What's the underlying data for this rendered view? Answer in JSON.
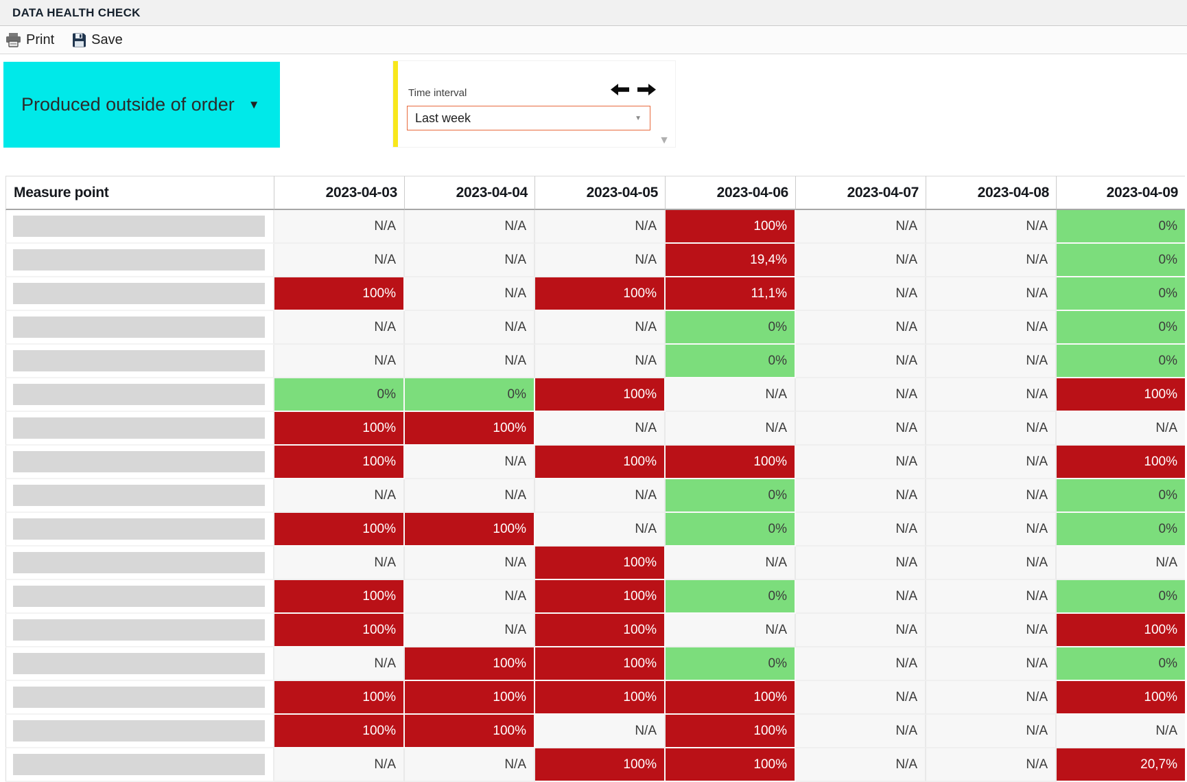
{
  "header": {
    "title": "DATA HEALTH CHECK"
  },
  "toolbar": {
    "print_label": "Print",
    "save_label": "Save"
  },
  "filters": {
    "measure_dropdown": {
      "label": "Produced outside of order",
      "caret": "▼",
      "bg_color": "#00E9E9"
    },
    "time_panel": {
      "label": "Time interval",
      "selected_value": "Last week",
      "select_caret": "▼",
      "grip_caret": "▼",
      "accent_border_color": "#E8693C",
      "stripe_color": "#F8E71C"
    }
  },
  "table": {
    "first_column_header": "Measure point",
    "date_columns": [
      "2023-04-03",
      "2023-04-04",
      "2023-04-05",
      "2023-04-06",
      "2023-04-07",
      "2023-04-08",
      "2023-04-09"
    ],
    "status_colors": {
      "red": "#BA1117",
      "green": "#7CDD7C",
      "na_bg": "#F7F7F7"
    },
    "rows": [
      {
        "cells": [
          [
            "N/A",
            "na"
          ],
          [
            "N/A",
            "na"
          ],
          [
            "N/A",
            "na"
          ],
          [
            "100%",
            "red"
          ],
          [
            "N/A",
            "na"
          ],
          [
            "N/A",
            "na"
          ],
          [
            "0%",
            "green"
          ]
        ]
      },
      {
        "cells": [
          [
            "N/A",
            "na"
          ],
          [
            "N/A",
            "na"
          ],
          [
            "N/A",
            "na"
          ],
          [
            "19,4%",
            "red"
          ],
          [
            "N/A",
            "na"
          ],
          [
            "N/A",
            "na"
          ],
          [
            "0%",
            "green"
          ]
        ]
      },
      {
        "cells": [
          [
            "100%",
            "red"
          ],
          [
            "N/A",
            "na"
          ],
          [
            "100%",
            "red"
          ],
          [
            "11,1%",
            "red"
          ],
          [
            "N/A",
            "na"
          ],
          [
            "N/A",
            "na"
          ],
          [
            "0%",
            "green"
          ]
        ]
      },
      {
        "cells": [
          [
            "N/A",
            "na"
          ],
          [
            "N/A",
            "na"
          ],
          [
            "N/A",
            "na"
          ],
          [
            "0%",
            "green"
          ],
          [
            "N/A",
            "na"
          ],
          [
            "N/A",
            "na"
          ],
          [
            "0%",
            "green"
          ]
        ]
      },
      {
        "cells": [
          [
            "N/A",
            "na"
          ],
          [
            "N/A",
            "na"
          ],
          [
            "N/A",
            "na"
          ],
          [
            "0%",
            "green"
          ],
          [
            "N/A",
            "na"
          ],
          [
            "N/A",
            "na"
          ],
          [
            "0%",
            "green"
          ]
        ]
      },
      {
        "cells": [
          [
            "0%",
            "green"
          ],
          [
            "0%",
            "green"
          ],
          [
            "100%",
            "red"
          ],
          [
            "N/A",
            "na"
          ],
          [
            "N/A",
            "na"
          ],
          [
            "N/A",
            "na"
          ],
          [
            "100%",
            "red"
          ]
        ]
      },
      {
        "cells": [
          [
            "100%",
            "red"
          ],
          [
            "100%",
            "red"
          ],
          [
            "N/A",
            "na"
          ],
          [
            "N/A",
            "na"
          ],
          [
            "N/A",
            "na"
          ],
          [
            "N/A",
            "na"
          ],
          [
            "N/A",
            "na"
          ]
        ]
      },
      {
        "cells": [
          [
            "100%",
            "red"
          ],
          [
            "N/A",
            "na"
          ],
          [
            "100%",
            "red"
          ],
          [
            "100%",
            "red"
          ],
          [
            "N/A",
            "na"
          ],
          [
            "N/A",
            "na"
          ],
          [
            "100%",
            "red"
          ]
        ]
      },
      {
        "cells": [
          [
            "N/A",
            "na"
          ],
          [
            "N/A",
            "na"
          ],
          [
            "N/A",
            "na"
          ],
          [
            "0%",
            "green"
          ],
          [
            "N/A",
            "na"
          ],
          [
            "N/A",
            "na"
          ],
          [
            "0%",
            "green"
          ]
        ]
      },
      {
        "cells": [
          [
            "100%",
            "red"
          ],
          [
            "100%",
            "red"
          ],
          [
            "N/A",
            "na"
          ],
          [
            "0%",
            "green"
          ],
          [
            "N/A",
            "na"
          ],
          [
            "N/A",
            "na"
          ],
          [
            "0%",
            "green"
          ]
        ]
      },
      {
        "cells": [
          [
            "N/A",
            "na"
          ],
          [
            "N/A",
            "na"
          ],
          [
            "100%",
            "red"
          ],
          [
            "N/A",
            "na"
          ],
          [
            "N/A",
            "na"
          ],
          [
            "N/A",
            "na"
          ],
          [
            "N/A",
            "na"
          ]
        ]
      },
      {
        "cells": [
          [
            "100%",
            "red"
          ],
          [
            "N/A",
            "na"
          ],
          [
            "100%",
            "red"
          ],
          [
            "0%",
            "green"
          ],
          [
            "N/A",
            "na"
          ],
          [
            "N/A",
            "na"
          ],
          [
            "0%",
            "green"
          ]
        ]
      },
      {
        "cells": [
          [
            "100%",
            "red"
          ],
          [
            "N/A",
            "na"
          ],
          [
            "100%",
            "red"
          ],
          [
            "N/A",
            "na"
          ],
          [
            "N/A",
            "na"
          ],
          [
            "N/A",
            "na"
          ],
          [
            "100%",
            "red"
          ]
        ]
      },
      {
        "cells": [
          [
            "N/A",
            "na"
          ],
          [
            "100%",
            "red"
          ],
          [
            "100%",
            "red"
          ],
          [
            "0%",
            "green"
          ],
          [
            "N/A",
            "na"
          ],
          [
            "N/A",
            "na"
          ],
          [
            "0%",
            "green"
          ]
        ]
      },
      {
        "cells": [
          [
            "100%",
            "red"
          ],
          [
            "100%",
            "red"
          ],
          [
            "100%",
            "red"
          ],
          [
            "100%",
            "red"
          ],
          [
            "N/A",
            "na"
          ],
          [
            "N/A",
            "na"
          ],
          [
            "100%",
            "red"
          ]
        ]
      },
      {
        "cells": [
          [
            "100%",
            "red"
          ],
          [
            "100%",
            "red"
          ],
          [
            "N/A",
            "na"
          ],
          [
            "100%",
            "red"
          ],
          [
            "N/A",
            "na"
          ],
          [
            "N/A",
            "na"
          ],
          [
            "N/A",
            "na"
          ]
        ]
      },
      {
        "cells": [
          [
            "N/A",
            "na"
          ],
          [
            "N/A",
            "na"
          ],
          [
            "100%",
            "red"
          ],
          [
            "100%",
            "red"
          ],
          [
            "N/A",
            "na"
          ],
          [
            "N/A",
            "na"
          ],
          [
            "20,7%",
            "red"
          ]
        ]
      }
    ]
  }
}
